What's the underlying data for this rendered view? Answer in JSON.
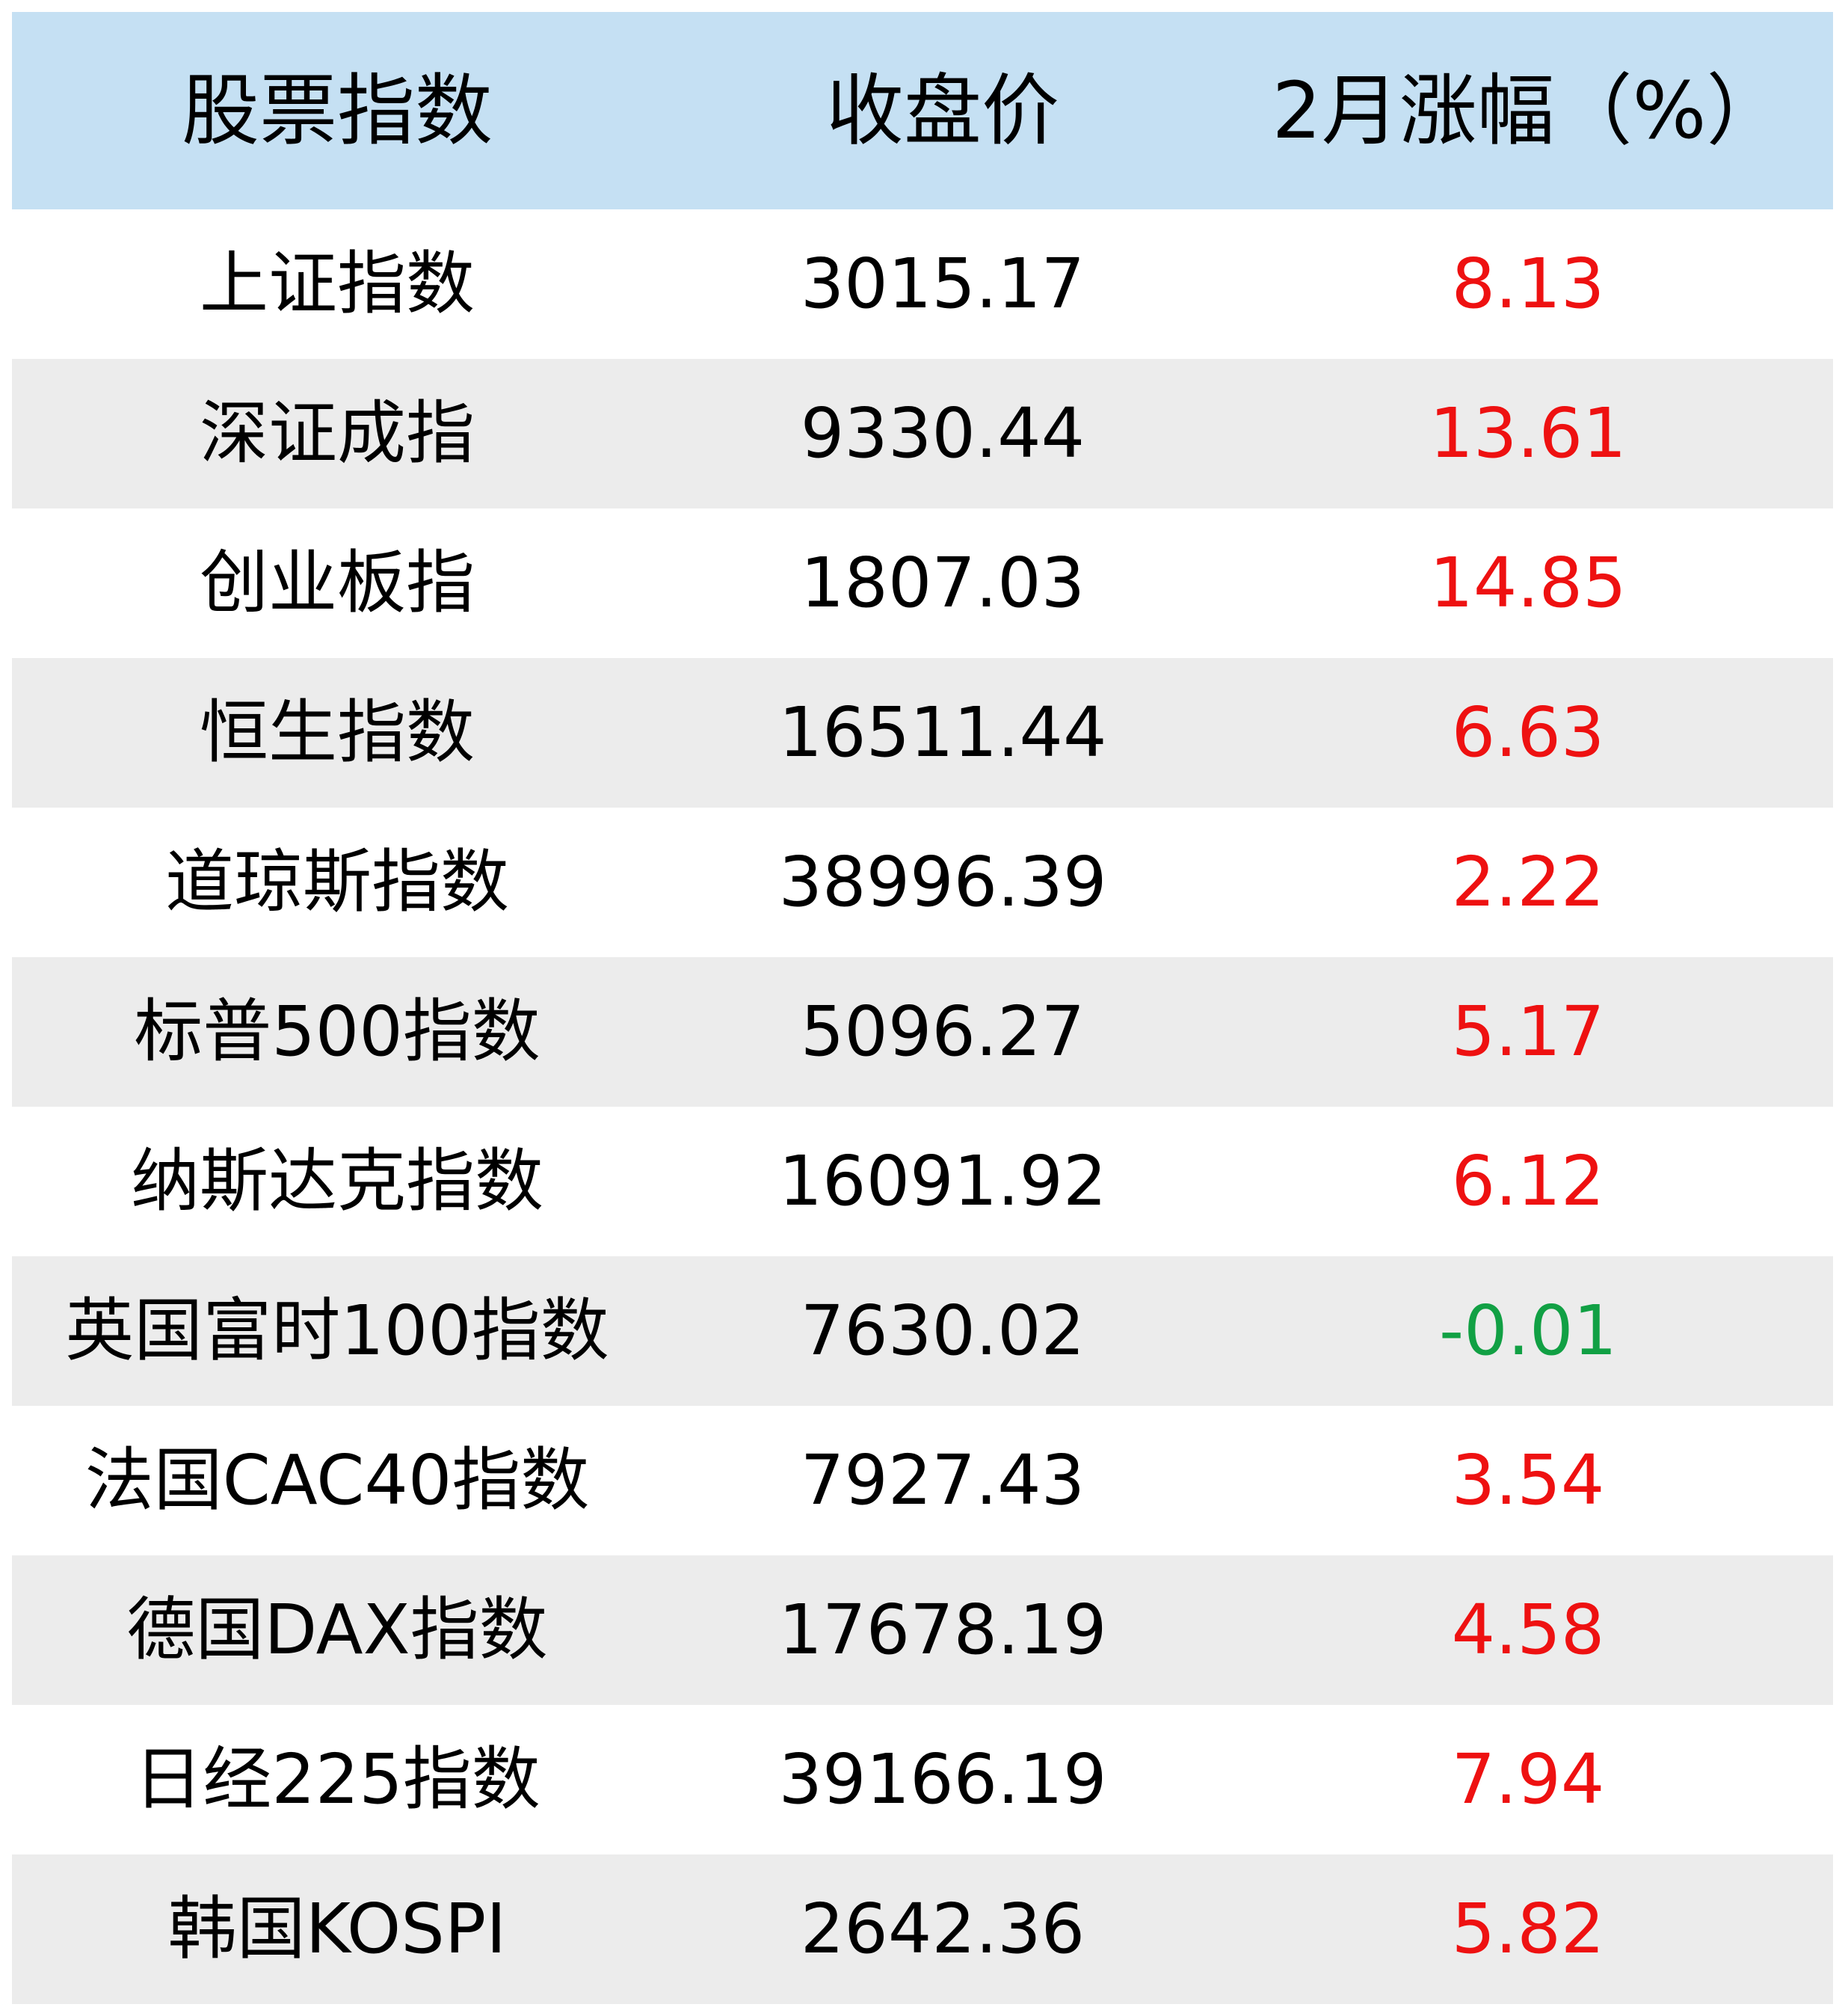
{
  "table": {
    "headers": [
      "股票指数",
      "收盘价",
      "2月涨幅（%）"
    ],
    "rows": [
      {
        "name": "上证指数",
        "close": "3015.17",
        "change": "8.13",
        "direction": "up"
      },
      {
        "name": "深证成指",
        "close": "9330.44",
        "change": "13.61",
        "direction": "up"
      },
      {
        "name": "创业板指",
        "close": "1807.03",
        "change": "14.85",
        "direction": "up"
      },
      {
        "name": "恒生指数",
        "close": "16511.44",
        "change": "6.63",
        "direction": "up"
      },
      {
        "name": "道琼斯指数",
        "close": "38996.39",
        "change": "2.22",
        "direction": "up"
      },
      {
        "name": "标普500指数",
        "close": "5096.27",
        "change": "5.17",
        "direction": "up"
      },
      {
        "name": "纳斯达克指数",
        "close": "16091.92",
        "change": "6.12",
        "direction": "up"
      },
      {
        "name": "英国富时100指数",
        "close": "7630.02",
        "change": "-0.01",
        "direction": "down"
      },
      {
        "name": "法国CAC40指数",
        "close": "7927.43",
        "change": "3.54",
        "direction": "up"
      },
      {
        "name": "德国DAX指数",
        "close": "17678.19",
        "change": "4.58",
        "direction": "up"
      },
      {
        "name": "日经225指数",
        "close": "39166.19",
        "change": "7.94",
        "direction": "up"
      },
      {
        "name": "韩国KOSPI",
        "close": "2642.36",
        "change": "5.82",
        "direction": "up"
      }
    ]
  },
  "colors": {
    "header_bg": "#c5e0f3",
    "stripe_bg": "#ececec",
    "up": "#ee1111",
    "down": "#11a044"
  }
}
